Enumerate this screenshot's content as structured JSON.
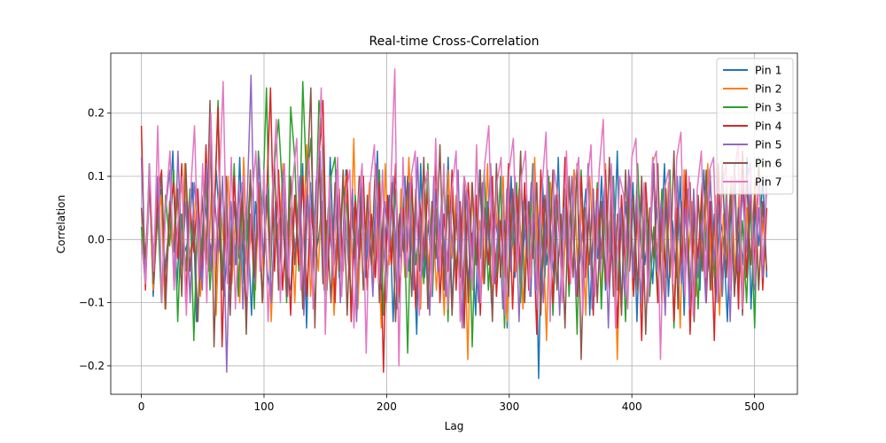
{
  "chart_data": {
    "type": "line",
    "title": "Real-time Cross-Correlation",
    "xlabel": "Lag",
    "ylabel": "Correlation",
    "xlim": [
      -25,
      535
    ],
    "ylim": [
      -0.245,
      0.295
    ],
    "xticks": [
      0,
      100,
      200,
      300,
      400,
      500
    ],
    "xtick_labels": [
      "0",
      "100",
      "200",
      "300",
      "400",
      "500"
    ],
    "yticks": [
      -0.2,
      -0.1,
      0.0,
      0.1,
      0.2
    ],
    "ytick_labels": [
      "−0.2",
      "−0.1",
      "0.0",
      "0.1",
      "0.2"
    ],
    "grid": true,
    "legend_position": "top-right",
    "series": [
      {
        "name": "Pin 1",
        "color": "#1f77b4",
        "values": [
          0.0,
          -0.07,
          0.12,
          -0.09,
          0.03,
          0.08,
          -0.05,
          0.02,
          0.14,
          -0.08,
          0.04,
          -0.02,
          0.0,
          0.09,
          -0.13,
          -0.06,
          0.07,
          0.01,
          -0.03,
          0.11,
          0.02,
          -0.09,
          0.0,
          0.05,
          -0.04,
          0.13,
          -0.07,
          0.03,
          -0.12,
          0.06,
          -0.01,
          0.08,
          -0.05,
          -0.1,
          0.04,
          0.01,
          0.1,
          -0.06,
          -0.08,
          0.07,
          -0.02,
          0.12,
          -0.14,
          0.09,
          -0.03,
          0.0,
          0.06,
          -0.09,
          0.13,
          -0.04,
          0.02,
          -0.07,
          0.11,
          -0.01,
          0.05,
          -0.11,
          0.08,
          -0.06,
          0.03,
          -0.02,
          0.14,
          -0.08,
          0.0,
          0.07,
          -0.13,
          0.04,
          -0.03,
          0.1,
          -0.05,
          0.02,
          -0.15,
          0.12,
          -0.06,
          0.03,
          -0.09,
          0.08,
          0.0,
          -0.04,
          0.13,
          -0.11,
          0.05,
          -0.02,
          0.09,
          -0.07,
          0.01,
          -0.12,
          0.11,
          -0.05,
          0.06,
          -0.1,
          0.03,
          -0.01,
          0.08,
          -0.14,
          0.1,
          -0.06,
          0.04,
          -0.03,
          0.07,
          -0.09,
          0.12,
          -0.22,
          0.09,
          -0.04,
          0.02,
          -0.07,
          0.13,
          -0.1,
          0.05,
          -0.02,
          0.11,
          -0.06,
          0.0,
          0.08,
          -0.12,
          0.04,
          -0.03,
          0.1,
          -0.08,
          0.03,
          -0.05,
          0.14,
          -0.11,
          0.06,
          -0.01,
          0.09,
          -0.13,
          0.07,
          -0.04,
          0.02,
          -0.07,
          0.05,
          -0.02,
          0.12,
          -0.09,
          0.03,
          -0.06,
          0.1,
          -0.12,
          0.08,
          -0.03,
          0.01,
          -0.08,
          0.11,
          -0.05,
          0.06,
          -0.1,
          0.04,
          0.0,
          -0.13,
          0.09,
          -0.07,
          0.02,
          -0.04,
          0.13,
          -0.11,
          0.05,
          -0.01,
          0.1,
          -0.06
        ]
      },
      {
        "name": "Pin 2",
        "color": "#ff7f0e",
        "values": [
          0.05,
          -0.04,
          0.1,
          -0.08,
          0.02,
          0.07,
          -0.11,
          0.04,
          -0.02,
          0.09,
          -0.06,
          0.12,
          -0.03,
          0.0,
          0.08,
          -0.09,
          0.03,
          -0.05,
          0.11,
          -0.12,
          0.06,
          -0.01,
          0.1,
          -0.07,
          0.04,
          -0.1,
          0.13,
          -0.04,
          0.01,
          -0.08,
          0.09,
          -0.05,
          0.07,
          -0.13,
          0.03,
          0.0,
          0.12,
          -0.06,
          0.05,
          -0.1,
          0.08,
          -0.02,
          0.15,
          -0.09,
          0.02,
          -0.05,
          0.11,
          -0.08,
          0.04,
          -0.12,
          0.07,
          -0.03,
          0.1,
          -0.06,
          0.16,
          -0.11,
          0.03,
          -0.01,
          0.09,
          -0.07,
          0.05,
          -0.14,
          0.12,
          -0.04,
          0.02,
          -0.09,
          0.08,
          -0.06,
          0.13,
          -0.02,
          0.04,
          -0.11,
          0.1,
          -0.05,
          0.06,
          -0.08,
          0.01,
          -0.12,
          0.11,
          -0.03,
          0.07,
          -0.1,
          0.05,
          -0.19,
          0.09,
          -0.04,
          0.03,
          -0.07,
          0.12,
          -0.09,
          0.06,
          -0.02,
          0.1,
          -0.13,
          0.04,
          -0.05,
          0.08,
          -0.11,
          0.02,
          -0.06,
          0.13,
          -0.08,
          0.05,
          -0.16,
          0.09,
          -0.03,
          0.07,
          -0.1,
          0.03,
          -0.04,
          0.11,
          -0.07,
          0.06,
          -0.12,
          0.1,
          -0.02,
          0.04,
          -0.09,
          0.12,
          -0.05,
          0.08,
          -0.19,
          0.05,
          -0.03,
          0.1,
          -0.08,
          0.04,
          -0.11,
          0.07,
          -0.06,
          0.13,
          -0.02,
          0.03,
          -0.1,
          0.09,
          -0.07,
          0.05,
          -0.14,
          0.11,
          -0.04,
          0.06,
          -0.09,
          0.02,
          -0.05,
          0.12,
          -0.08,
          0.07,
          -0.12,
          0.04,
          -0.03,
          0.1,
          -0.06,
          0.08,
          -0.1,
          0.05,
          -0.04,
          0.09,
          -0.07,
          0.03,
          -0.05
        ]
      },
      {
        "name": "Pin 3",
        "color": "#2ca02c",
        "values": [
          0.02,
          -0.06,
          0.09,
          -0.03,
          0.05,
          -0.1,
          0.07,
          -0.01,
          0.11,
          -0.13,
          0.04,
          -0.05,
          0.08,
          -0.16,
          0.06,
          -0.02,
          0.1,
          -0.08,
          0.03,
          0.22,
          -0.07,
          0.05,
          -0.04,
          0.12,
          -0.09,
          0.06,
          -0.02,
          0.1,
          -0.11,
          0.14,
          0.04,
          0.24,
          -0.06,
          0.12,
          0.19,
          0.07,
          -0.1,
          0.21,
          0.13,
          -0.05,
          0.25,
          0.08,
          0.16,
          -0.03,
          0.22,
          0.14,
          -0.08,
          0.1,
          0.13,
          -0.06,
          0.09,
          0.05,
          -0.11,
          0.07,
          -0.02,
          0.1,
          -0.08,
          0.04,
          -0.06,
          0.11,
          -0.12,
          0.05,
          -0.03,
          0.08,
          -0.1,
          0.06,
          -0.18,
          0.09,
          -0.04,
          0.03,
          -0.07,
          0.12,
          -0.09,
          0.05,
          -0.02,
          0.1,
          -0.13,
          0.07,
          -0.05,
          0.04,
          -0.11,
          0.08,
          -0.17,
          0.06,
          -0.03,
          0.11,
          -0.08,
          0.02,
          -0.06,
          0.1,
          -0.14,
          0.05,
          -0.01,
          0.09,
          -0.1,
          0.07,
          -0.04,
          0.12,
          -0.08,
          0.03,
          -0.06,
          0.1,
          -0.12,
          0.05,
          -0.02,
          0.08,
          -0.09,
          0.06,
          -0.15,
          0.11,
          -0.04,
          0.03,
          -0.07,
          0.09,
          -0.11,
          0.06,
          -0.02,
          0.1,
          -0.08,
          0.04,
          -0.13,
          0.07,
          -0.05,
          0.12,
          -0.03,
          0.06,
          -0.09,
          0.02,
          -0.1,
          0.08,
          -0.06,
          0.11,
          -0.14,
          0.05,
          -0.03,
          0.09,
          -0.08,
          0.04,
          -0.11,
          0.07,
          -0.02,
          0.1,
          -0.06,
          0.05,
          -0.09,
          0.08,
          -0.04,
          0.12,
          -0.07,
          0.03,
          -0.1,
          0.06,
          -0.14,
          0.13,
          -0.05,
          0.08
        ]
      },
      {
        "name": "Pin 4",
        "color": "#d62728",
        "values": [
          0.18,
          -0.08,
          0.1,
          -0.05,
          0.07,
          0.11,
          -0.09,
          0.04,
          0.09,
          -0.03,
          0.12,
          -0.1,
          0.06,
          -0.02,
          0.08,
          -0.07,
          0.15,
          -0.04,
          0.03,
          0.21,
          -0.17,
          0.05,
          -0.08,
          0.1,
          -0.03,
          0.07,
          -0.12,
          0.04,
          -0.06,
          0.09,
          -0.1,
          0.06,
          0.24,
          -0.05,
          0.11,
          -0.08,
          0.03,
          -0.12,
          0.07,
          -0.04,
          0.1,
          -0.09,
          0.05,
          -0.02,
          0.13,
          0.22,
          -0.07,
          0.04,
          -0.1,
          0.08,
          -0.05,
          0.11,
          -0.13,
          0.06,
          -0.03,
          0.1,
          -0.08,
          0.04,
          -0.06,
          0.09,
          -0.21,
          0.07,
          -0.04,
          0.12,
          -0.09,
          0.05,
          -0.02,
          0.1,
          -0.11,
          0.06,
          -0.03,
          0.08,
          -0.07,
          0.13,
          -0.1,
          0.04,
          -0.05,
          0.11,
          -0.08,
          0.06,
          -0.14,
          0.09,
          -0.02,
          0.07,
          -0.12,
          0.05,
          -0.04,
          0.1,
          -0.09,
          0.03,
          -0.06,
          0.12,
          -0.11,
          0.07,
          -0.05,
          0.09,
          -0.08,
          0.04,
          -0.15,
          0.11,
          -0.03,
          0.06,
          -0.1,
          0.08,
          -0.04,
          0.13,
          -0.07,
          0.02,
          -0.09,
          0.1,
          -0.06,
          0.05,
          -0.12,
          0.08,
          -0.03,
          0.11,
          -0.08,
          0.04,
          -0.14,
          0.07,
          -0.05,
          0.1,
          -0.09,
          0.06,
          -0.16,
          0.09,
          -0.02,
          0.12,
          -0.1,
          0.05,
          -0.06,
          0.08,
          -0.13,
          0.07,
          -0.04,
          0.11,
          -0.15,
          0.05,
          -0.03,
          0.09,
          -0.1,
          0.06,
          -0.16,
          0.12,
          -0.07,
          0.04,
          -0.05,
          0.1,
          -0.11,
          0.14,
          -0.06,
          0.08,
          -0.04,
          0.11,
          -0.08,
          0.05
        ]
      },
      {
        "name": "Pin 5",
        "color": "#9467bd",
        "values": [
          0.13,
          -0.06,
          0.08,
          -0.03,
          0.1,
          -0.09,
          0.05,
          0.11,
          -0.07,
          0.14,
          -0.04,
          0.06,
          -0.1,
          0.09,
          0.03,
          -0.08,
          0.12,
          -0.05,
          0.07,
          -0.02,
          0.1,
          -0.21,
          0.06,
          -0.04,
          0.09,
          -0.11,
          0.05,
          0.26,
          -0.07,
          0.13,
          -0.03,
          0.08,
          -0.1,
          0.06,
          -0.05,
          0.11,
          -0.09,
          0.04,
          -0.02,
          0.1,
          -0.12,
          0.07,
          -0.06,
          0.09,
          0.14,
          -0.08,
          0.05,
          -0.03,
          0.11,
          -0.1,
          0.06,
          -0.04,
          0.08,
          -0.13,
          0.1,
          -0.05,
          0.04,
          -0.09,
          0.12,
          -0.07,
          0.06,
          -0.02,
          0.1,
          -0.11,
          0.05,
          -0.04,
          0.09,
          -0.08,
          0.13,
          -0.06,
          0.03,
          -0.12,
          0.1,
          -0.05,
          0.07,
          -0.09,
          0.04,
          -0.03,
          0.11,
          -0.14,
          0.08,
          -0.06,
          0.05,
          -0.1,
          0.09,
          -0.02,
          0.12,
          -0.07,
          0.04,
          -0.11,
          0.08,
          -0.05,
          0.1,
          -0.13,
          0.06,
          -0.03,
          0.09,
          -0.08,
          0.04,
          -0.1,
          0.11,
          -0.06,
          0.07,
          -0.12,
          0.05,
          -0.04,
          0.1,
          -0.09,
          0.03,
          -0.07,
          0.12,
          -0.11,
          0.06,
          -0.05,
          0.08,
          -0.14,
          0.1,
          -0.03,
          0.05,
          -0.09,
          0.11,
          -0.06,
          0.07,
          -0.1,
          0.04,
          -0.08,
          0.12,
          -0.05,
          0.06,
          -0.12,
          0.09,
          -0.03,
          0.1,
          -0.07,
          0.05,
          -0.11,
          0.08,
          -0.06,
          0.03,
          -0.1,
          0.11,
          -0.04,
          0.07,
          -0.09,
          0.06,
          -0.13,
          0.1,
          -0.05,
          0.08,
          -0.02,
          0.09,
          -0.08,
          0.05,
          -0.06,
          0.1
        ]
      },
      {
        "name": "Pin 6",
        "color": "#8c564b",
        "values": [
          0.05,
          -0.03,
          0.09,
          -0.07,
          0.04,
          0.1,
          -0.11,
          0.06,
          -0.02,
          0.08,
          -0.09,
          0.12,
          -0.05,
          0.03,
          -0.13,
          0.07,
          -0.04,
          0.22,
          -0.17,
          0.05,
          -0.08,
          0.1,
          -0.12,
          0.06,
          -0.03,
          0.09,
          -0.15,
          0.11,
          -0.06,
          0.04,
          -0.1,
          0.07,
          -0.02,
          0.12,
          -0.08,
          0.05,
          -0.09,
          0.1,
          -0.04,
          0.06,
          -0.11,
          0.08,
          0.24,
          -0.14,
          0.13,
          -0.07,
          0.03,
          -0.1,
          0.09,
          -0.05,
          0.11,
          -0.12,
          0.06,
          -0.03,
          0.1,
          -0.08,
          0.07,
          -0.04,
          0.12,
          -0.1,
          0.05,
          -0.06,
          0.09,
          -0.13,
          0.04,
          -0.02,
          0.1,
          -0.09,
          0.08,
          -0.05,
          0.13,
          -0.11,
          0.06,
          -0.03,
          0.15,
          -0.08,
          0.07,
          -0.12,
          0.04,
          -0.06,
          0.1,
          -0.1,
          0.09,
          -0.04,
          0.11,
          -0.07,
          0.05,
          -0.13,
          0.12,
          -0.06,
          0.03,
          -0.09,
          0.08,
          -0.05,
          0.14,
          -0.1,
          0.06,
          -0.03,
          0.09,
          -0.12,
          0.07,
          -0.05,
          0.11,
          -0.08,
          0.04,
          -0.14,
          0.1,
          -0.06,
          0.12,
          -0.19,
          0.05,
          -0.04,
          0.08,
          -0.1,
          0.06,
          -0.07,
          0.13,
          -0.09,
          0.04,
          -0.12,
          0.11,
          -0.05,
          0.07,
          -0.08,
          0.1,
          -0.15,
          0.05,
          -0.03,
          0.12,
          -0.1,
          0.08,
          -0.06,
          0.14,
          -0.11,
          0.06,
          -0.04,
          0.09,
          -0.13,
          0.07,
          -0.05,
          0.11,
          -0.08,
          0.04,
          -0.1,
          0.12,
          -0.06,
          0.08,
          -0.09,
          0.05,
          -0.12,
          0.1,
          -0.04,
          0.07,
          -0.08,
          0.06,
          -0.05
        ]
      },
      {
        "name": "Pin 7",
        "color": "#e377c2",
        "values": [
          0.0,
          -0.07,
          0.12,
          -0.05,
          0.18,
          -0.1,
          0.06,
          0.14,
          -0.08,
          0.03,
          0.1,
          -0.12,
          0.07,
          0.18,
          -0.06,
          0.12,
          -0.1,
          0.2,
          -0.04,
          0.08,
          0.25,
          -0.07,
          0.13,
          -0.11,
          0.05,
          0.1,
          -0.09,
          0.06,
          0.14,
          -0.05,
          0.11,
          -0.13,
          0.07,
          0.19,
          -0.1,
          0.12,
          -0.06,
          0.09,
          0.16,
          -0.08,
          0.05,
          0.13,
          -0.11,
          0.08,
          0.24,
          -0.15,
          0.1,
          -0.06,
          0.13,
          -0.09,
          0.07,
          0.11,
          -0.14,
          0.05,
          0.12,
          -0.18,
          0.09,
          0.15,
          -0.07,
          0.11,
          -0.1,
          0.08,
          0.27,
          -0.2,
          0.13,
          -0.06,
          0.1,
          0.14,
          -0.12,
          0.07,
          0.11,
          -0.09,
          0.16,
          -0.05,
          0.12,
          -0.11,
          0.08,
          0.14,
          -0.13,
          0.1,
          0.06,
          -0.08,
          0.15,
          -0.1,
          0.12,
          0.18,
          -0.07,
          0.09,
          0.13,
          -0.12,
          0.11,
          0.16,
          -0.06,
          0.1,
          0.14,
          -0.09,
          0.12,
          -0.11,
          0.08,
          0.17,
          -0.13,
          0.11,
          0.06,
          -0.1,
          0.14,
          -0.07,
          0.09,
          0.13,
          -0.12,
          0.08,
          0.15,
          -0.09,
          0.11,
          0.19,
          -0.08,
          0.12,
          -0.14,
          0.1,
          0.07,
          -0.11,
          0.13,
          0.16,
          -0.06,
          0.09,
          -0.1,
          0.12,
          0.14,
          -0.19,
          0.08,
          0.11,
          -0.07,
          0.13,
          0.17,
          -0.09,
          0.1,
          -0.12,
          0.08,
          0.14,
          -0.06,
          0.11,
          0.13,
          -0.1,
          0.07,
          0.12,
          -0.08,
          0.1,
          0.15,
          -0.11,
          0.09,
          0.12,
          -0.07,
          0.1,
          -0.04,
          0.08
        ]
      }
    ]
  }
}
